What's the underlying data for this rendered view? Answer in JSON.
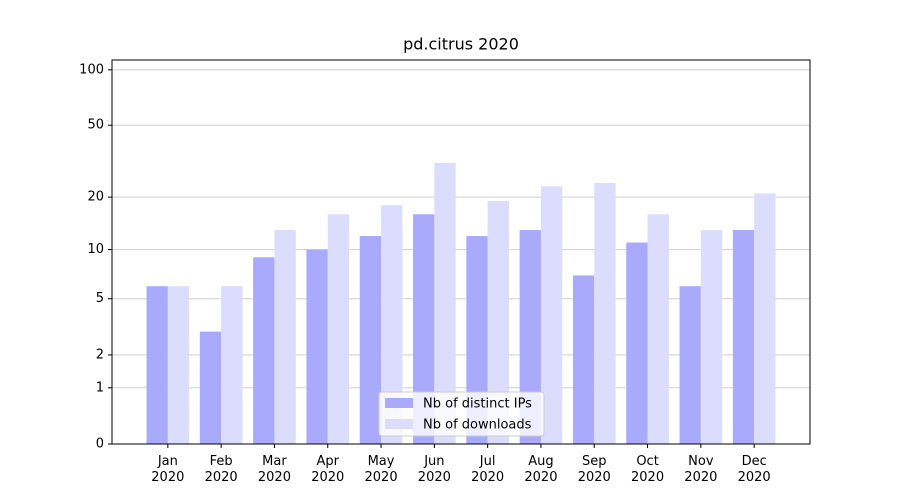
{
  "chart_data": {
    "type": "bar",
    "title": "pd.citrus 2020",
    "categories": [
      "Jan 2020",
      "Feb 2020",
      "Mar 2020",
      "Apr 2020",
      "May 2020",
      "Jun 2020",
      "Jul 2020",
      "Aug 2020",
      "Sep 2020",
      "Oct 2020",
      "Nov 2020",
      "Dec 2020"
    ],
    "series": [
      {
        "name": "Nb of distinct IPs",
        "color": "#aaaafc",
        "values": [
          6,
          3,
          9,
          10,
          12,
          16,
          12,
          13,
          7,
          11,
          6,
          13
        ]
      },
      {
        "name": "Nb of downloads",
        "color": "#dcdcfc",
        "values": [
          6,
          6,
          13,
          16,
          18,
          31,
          19,
          23,
          24,
          16,
          13,
          21
        ]
      }
    ],
    "yscale": "log1p",
    "ylim": [
      0,
      113
    ],
    "yticks": [
      0,
      1,
      2,
      5,
      10,
      20,
      50,
      100
    ],
    "grid": true,
    "legend": "lower center"
  }
}
